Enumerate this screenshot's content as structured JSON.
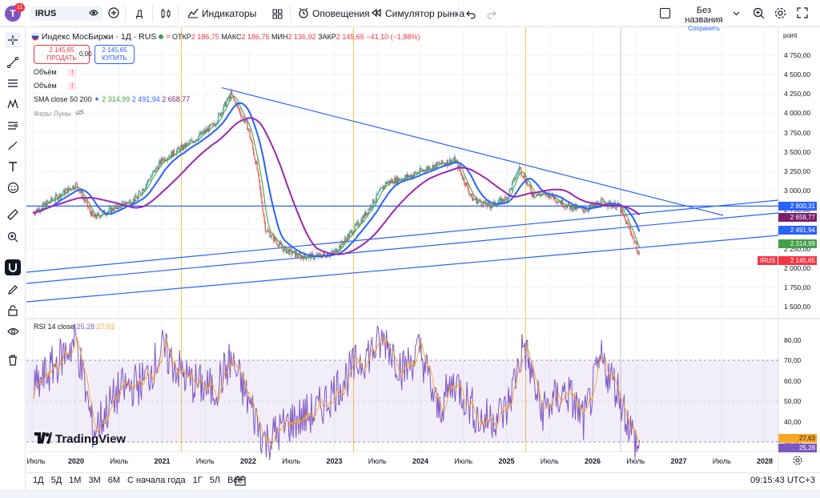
{
  "topbar": {
    "avatar_letter": "T",
    "notif_count": "11",
    "symbol": "IRUS",
    "interval": "Д",
    "indicators_label": "Индикаторы",
    "alerts_label": "Оповещения",
    "replay_label": "Симулятор рынка",
    "layout_name": "Без названия",
    "save_label": "Сохранить"
  },
  "legend": {
    "title": "Индекс МосБиржи · 1Д · RUS",
    "open_label": "ОТКР",
    "open": "2 186,75",
    "high_label": "МАКС",
    "high": "2 186,75",
    "low_label": "МИН",
    "low": "2 136,92",
    "close_label": "ЗАКР",
    "close": "2 145,65",
    "change": "−41,10 (−1,88%)",
    "sell_price": "2 145,65",
    "sell_label": "ПРОДАТЬ",
    "spread": "0,00",
    "buy_price": "2 145,65",
    "buy_label": "КУПИТЬ",
    "volume1": "Объём",
    "volume2": "Объём",
    "sma_label": "SMA close 50 200",
    "sma_v1": "2 314,99",
    "sma_v2": "2 491,94",
    "sma_v3": "2 658,77",
    "moon_label": "Фазы Луны",
    "rsi_label": "RSI 14 close",
    "rsi_v1": "25,28",
    "rsi_v2": "27,63"
  },
  "price_axis": {
    "unit": "point",
    "ticks": [
      "4 750,00",
      "4 500,00",
      "4 250,00",
      "4 000,00",
      "3 750,00",
      "3 500,00",
      "3 250,00",
      "3 000,00",
      "2 750,00",
      "2 500,00",
      "2 250,00",
      "2 000,00",
      "1 750,00",
      "1 500,00"
    ],
    "labels": [
      {
        "text": "2 800,31",
        "color": "#2962ff"
      },
      {
        "text": "2 658,77",
        "color": "#7b1f6a"
      },
      {
        "text": "2 491,94",
        "color": "#2962ff"
      },
      {
        "text": "2 314,99",
        "color": "#43a047"
      },
      {
        "text": "2 145,65",
        "color": "#f23645",
        "prefix": "IRUS"
      }
    ]
  },
  "rsi_axis": {
    "ticks": [
      "80,00",
      "70,00",
      "60,00",
      "50,00",
      "40,00",
      "30,00"
    ],
    "labels": [
      {
        "text": "27,63",
        "color": "#f9a825"
      },
      {
        "text": "25,28",
        "color": "#7e57c2"
      }
    ]
  },
  "time_axis": [
    "Июль",
    "2020",
    "Июль",
    "2021",
    "Июль",
    "2022",
    "Июль",
    "2023",
    "Июль",
    "2024",
    "Июль",
    "2025",
    "Июль",
    "2026",
    "Июль",
    "2027",
    "Июль",
    "2028"
  ],
  "bottombar": {
    "ranges": [
      "1Д",
      "5Д",
      "1М",
      "3М",
      "6М",
      "С начала года",
      "1Г",
      "5Л",
      "Все"
    ],
    "clock": "09:15:43 UTC+3"
  },
  "watermark": "TradingView",
  "chart_data": {
    "type": "line",
    "title": "Индекс МосБиржи · 1Д · RUS",
    "xlabel": "",
    "ylabel": "point",
    "ylim": [
      1400,
      4900
    ],
    "x": [
      2019.5,
      2019.75,
      2020.0,
      2020.2,
      2020.4,
      2020.7,
      2021.0,
      2021.3,
      2021.6,
      2021.8,
      2022.0,
      2022.1,
      2022.2,
      2022.4,
      2022.6,
      2022.8,
      2023.0,
      2023.3,
      2023.6,
      2023.9,
      2024.1,
      2024.4,
      2024.6,
      2024.8,
      2025.0,
      2025.15,
      2025.3,
      2025.5,
      2025.7,
      2025.9,
      2026.1,
      2026.3,
      2026.45,
      2026.55
    ],
    "series": [
      {
        "name": "IRUS",
        "values": [
          2720,
          2900,
          3080,
          2650,
          2750,
          2900,
          3400,
          3600,
          3850,
          4250,
          3800,
          3300,
          2500,
          2250,
          2150,
          2150,
          2200,
          2600,
          3100,
          3200,
          3300,
          3400,
          2900,
          2800,
          2900,
          3300,
          2950,
          2950,
          2800,
          2750,
          2850,
          2800,
          2450,
          2145.65
        ]
      }
    ],
    "rsi": {
      "ylim": [
        20,
        90
      ],
      "overbought": 70,
      "oversold": 30,
      "x": [
        2019.5,
        2019.8,
        2020.0,
        2020.2,
        2020.5,
        2020.8,
        2021.0,
        2021.3,
        2021.6,
        2021.8,
        2022.0,
        2022.2,
        2022.5,
        2022.8,
        2023.0,
        2023.3,
        2023.6,
        2023.8,
        2024.0,
        2024.2,
        2024.4,
        2024.7,
        2025.0,
        2025.2,
        2025.4,
        2025.7,
        2025.9,
        2026.1,
        2026.3,
        2026.45,
        2026.55
      ],
      "values": [
        55,
        70,
        80,
        35,
        55,
        60,
        75,
        60,
        55,
        70,
        50,
        30,
        40,
        45,
        55,
        70,
        80,
        65,
        75,
        45,
        60,
        40,
        45,
        78,
        45,
        55,
        40,
        70,
        55,
        35,
        25.28
      ]
    }
  }
}
